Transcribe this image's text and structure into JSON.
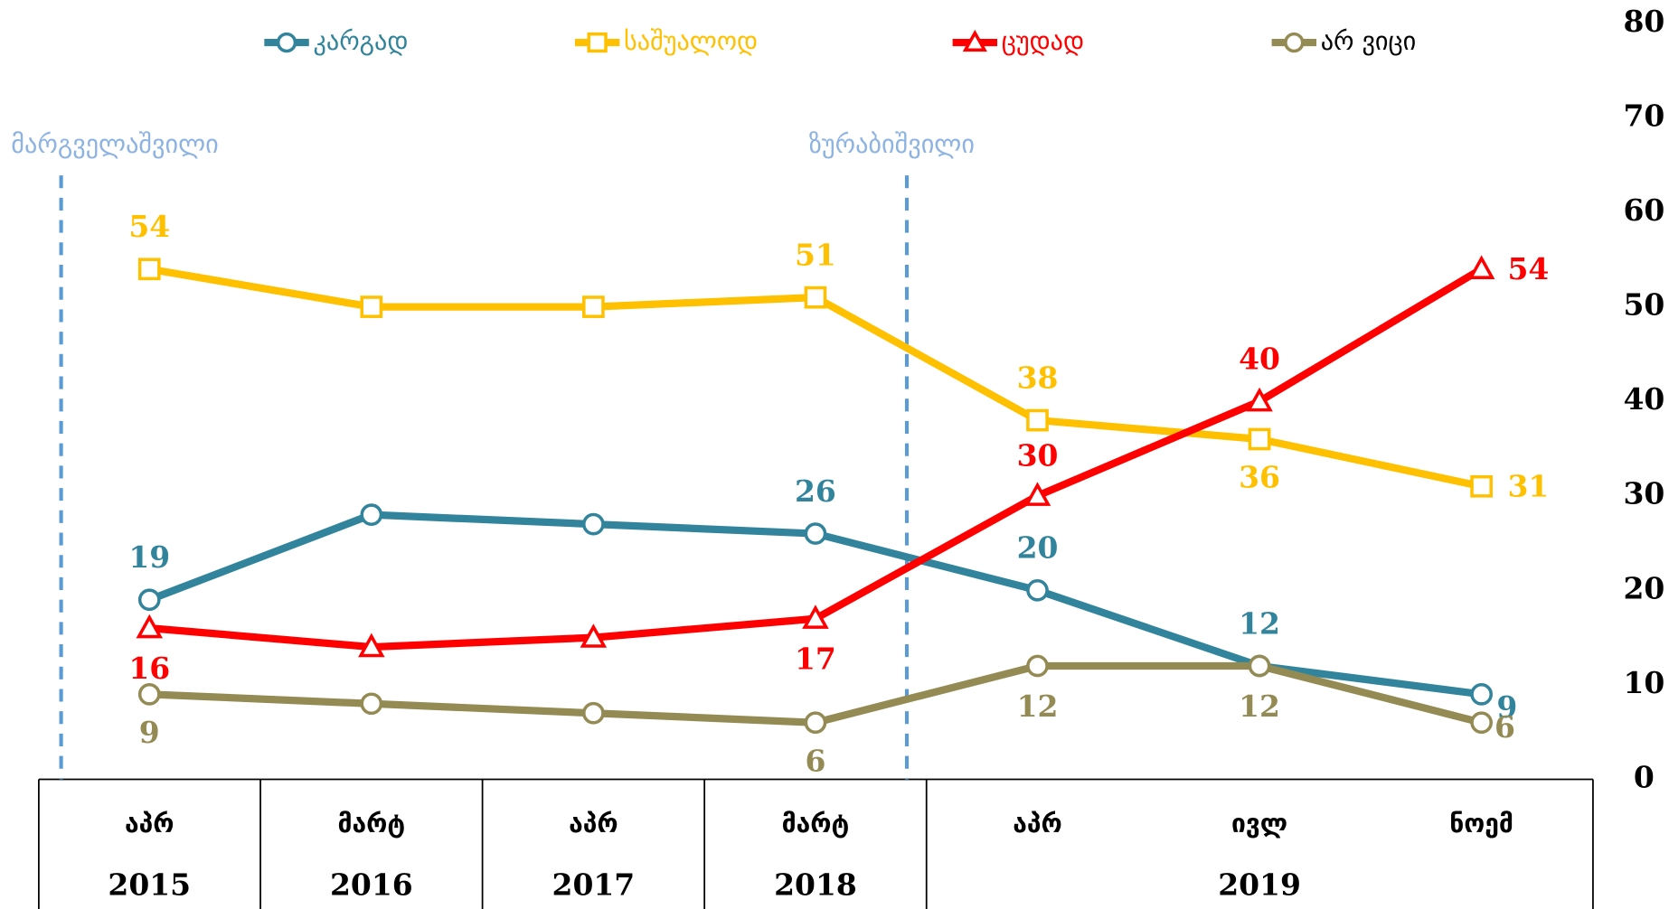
{
  "chart_data": {
    "type": "line",
    "categories": [
      "აპრ",
      "მარტ",
      "აპრ",
      "მარტ",
      "აპრ",
      "ივლ",
      "ნოემ"
    ],
    "year_groups": [
      {
        "label": "2015",
        "count": 1
      },
      {
        "label": "2016",
        "count": 1
      },
      {
        "label": "2017",
        "count": 1
      },
      {
        "label": "2018",
        "count": 1
      },
      {
        "label": "2019",
        "count": 3
      }
    ],
    "series": [
      {
        "name": "კარგად",
        "color": "#31849b",
        "marker": "circle",
        "values": [
          19,
          28,
          27,
          26,
          20,
          12,
          9
        ],
        "value_labels": [
          "19",
          null,
          null,
          "26",
          "20",
          "12",
          "9"
        ]
      },
      {
        "name": "საშუალოდ",
        "color": "#ffc000",
        "marker": "square",
        "values": [
          54,
          50,
          50,
          51,
          38,
          36,
          31
        ],
        "value_labels": [
          "54",
          null,
          null,
          "51",
          "38",
          "36",
          "31"
        ]
      },
      {
        "name": "ცუდად",
        "color": "#ff0000",
        "marker": "triangle",
        "values": [
          16,
          14,
          15,
          17,
          30,
          40,
          54
        ],
        "value_labels": [
          "16",
          null,
          null,
          "17",
          "30",
          "40",
          "54"
        ]
      },
      {
        "name": "არ ვიცი",
        "color": "#948a54",
        "marker": "circle",
        "values": [
          9,
          8,
          7,
          6,
          12,
          12,
          6
        ],
        "value_labels": [
          "9",
          null,
          null,
          "6",
          "12",
          "12",
          "6"
        ]
      }
    ],
    "annotations": [
      "მარგველაშვილი",
      "ზურაბიშვილი"
    ],
    "annotation_color": "#8db3e2",
    "ylim": [
      0,
      80
    ],
    "yticks": [
      0,
      10,
      20,
      30,
      40,
      50,
      60,
      70,
      80
    ],
    "y_axis_side": "right",
    "grid": false,
    "legend": "top"
  }
}
